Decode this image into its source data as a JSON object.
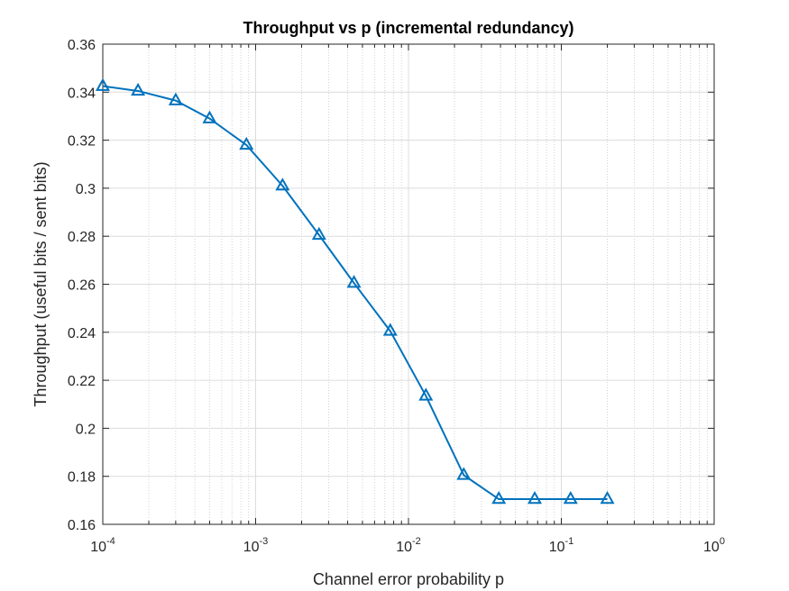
{
  "chart_data": {
    "type": "line",
    "title": "Throughput vs p  (incremental redundancy)",
    "xlabel": "Channel error probability p",
    "ylabel": "Throughput  (useful bits / sent bits)",
    "xscale": "log",
    "xlim": [
      0.0001,
      1
    ],
    "ylim": [
      0.16,
      0.36
    ],
    "grid": true,
    "minor_grid": true,
    "x_ticks": [
      {
        "base": "10",
        "exp": "-4",
        "value": 0.0001
      },
      {
        "base": "10",
        "exp": "-3",
        "value": 0.001
      },
      {
        "base": "10",
        "exp": "-2",
        "value": 0.01
      },
      {
        "base": "10",
        "exp": "-1",
        "value": 0.1
      },
      {
        "base": "10",
        "exp": "0",
        "value": 1
      }
    ],
    "y_ticks": [
      "0.16",
      "0.18",
      "0.2",
      "0.22",
      "0.24",
      "0.26",
      "0.28",
      "0.3",
      "0.32",
      "0.34",
      "0.36"
    ],
    "series": [
      {
        "color": "#0072BD",
        "marker": "triangle-open",
        "x": [
          0.0001,
          0.00017,
          0.0003,
          0.0005,
          0.00087,
          0.0015,
          0.0026,
          0.0044,
          0.0076,
          0.013,
          0.023,
          0.039,
          0.067,
          0.115,
          0.2
        ],
        "y": [
          0.3425,
          0.3405,
          0.3365,
          0.329,
          0.318,
          0.301,
          0.2805,
          0.2605,
          0.2405,
          0.2135,
          0.1805,
          0.1705,
          0.1705,
          0.1705,
          0.1705
        ]
      }
    ]
  }
}
